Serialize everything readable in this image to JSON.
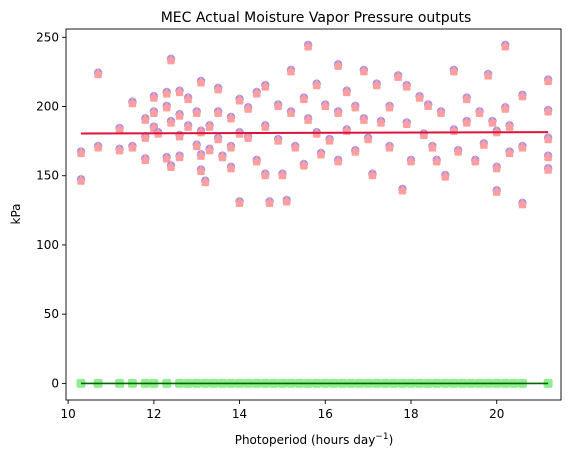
{
  "chart_data": {
    "type": "scatter",
    "title": "MEC Actual Moisture Vapor Pressure outputs",
    "xlabel_main": "Photoperiod (hours day",
    "xlabel_sup": "−1",
    "xlabel_close": ")",
    "ylabel": "kPa",
    "xlim": [
      9.95,
      21.5
    ],
    "ylim": [
      -12,
      256
    ],
    "xticks": [
      10,
      12,
      14,
      16,
      18,
      20
    ],
    "yticks": [
      0,
      50,
      100,
      150,
      200,
      250
    ],
    "grid": false,
    "colors": {
      "marker_outer": "#9b8ff2",
      "marker_inner": "#ff9e9e",
      "zero_marker": "#90ee90",
      "trend_line": "#dc143c",
      "zero_line": "#006400"
    },
    "series": [
      {
        "marker": "circle+triangle",
        "points": [
          [
            10.3,
            166
          ],
          [
            10.3,
            146
          ],
          [
            10.7,
            223
          ],
          [
            10.7,
            170
          ],
          [
            11.2,
            183
          ],
          [
            11.2,
            168
          ],
          [
            11.5,
            202
          ],
          [
            11.5,
            170
          ],
          [
            11.8,
            190
          ],
          [
            11.8,
            177
          ],
          [
            11.8,
            161
          ],
          [
            12.0,
            206
          ],
          [
            12.0,
            195
          ],
          [
            12.0,
            184
          ],
          [
            12.1,
            180
          ],
          [
            12.3,
            209
          ],
          [
            12.3,
            199
          ],
          [
            12.3,
            162
          ],
          [
            12.4,
            233
          ],
          [
            12.4,
            188
          ],
          [
            12.4,
            156
          ],
          [
            12.6,
            210
          ],
          [
            12.6,
            193
          ],
          [
            12.6,
            178
          ],
          [
            12.6,
            163
          ],
          [
            12.8,
            205
          ],
          [
            12.8,
            185
          ],
          [
            13.0,
            195
          ],
          [
            13.0,
            171
          ],
          [
            13.1,
            217
          ],
          [
            13.1,
            181
          ],
          [
            13.1,
            164
          ],
          [
            13.1,
            153
          ],
          [
            13.2,
            145
          ],
          [
            13.3,
            185
          ],
          [
            13.3,
            168
          ],
          [
            13.5,
            212
          ],
          [
            13.5,
            195
          ],
          [
            13.5,
            176
          ],
          [
            13.6,
            163
          ],
          [
            13.8,
            191
          ],
          [
            13.8,
            170
          ],
          [
            13.8,
            155
          ],
          [
            14.0,
            204
          ],
          [
            14.0,
            180
          ],
          [
            14.0,
            130
          ],
          [
            14.2,
            198
          ],
          [
            14.2,
            177
          ],
          [
            14.4,
            209
          ],
          [
            14.4,
            160
          ],
          [
            14.6,
            214
          ],
          [
            14.6,
            185
          ],
          [
            14.6,
            150
          ],
          [
            14.7,
            130
          ],
          [
            14.9,
            200
          ],
          [
            14.9,
            175
          ],
          [
            15.0,
            150
          ],
          [
            15.1,
            131
          ],
          [
            15.2,
            225
          ],
          [
            15.2,
            195
          ],
          [
            15.3,
            170
          ],
          [
            15.5,
            205
          ],
          [
            15.5,
            157
          ],
          [
            15.6,
            243
          ],
          [
            15.6,
            190
          ],
          [
            15.8,
            215
          ],
          [
            15.8,
            180
          ],
          [
            15.9,
            165
          ],
          [
            16.0,
            200
          ],
          [
            16.1,
            175
          ],
          [
            16.3,
            229
          ],
          [
            16.3,
            195
          ],
          [
            16.3,
            160
          ],
          [
            16.5,
            210
          ],
          [
            16.5,
            182
          ],
          [
            16.7,
            199
          ],
          [
            16.7,
            167
          ],
          [
            16.9,
            225
          ],
          [
            16.9,
            190
          ],
          [
            17.0,
            176
          ],
          [
            17.1,
            150
          ],
          [
            17.2,
            215
          ],
          [
            17.3,
            188
          ],
          [
            17.5,
            199
          ],
          [
            17.5,
            170
          ],
          [
            17.7,
            221
          ],
          [
            17.8,
            139
          ],
          [
            17.9,
            214
          ],
          [
            17.9,
            187
          ],
          [
            18.0,
            160
          ],
          [
            18.2,
            206
          ],
          [
            18.3,
            179
          ],
          [
            18.4,
            200
          ],
          [
            18.5,
            170
          ],
          [
            18.6,
            160
          ],
          [
            18.7,
            195
          ],
          [
            18.8,
            149
          ],
          [
            19.0,
            225
          ],
          [
            19.0,
            182
          ],
          [
            19.1,
            167
          ],
          [
            19.3,
            205
          ],
          [
            19.3,
            188
          ],
          [
            19.5,
            160
          ],
          [
            19.6,
            195
          ],
          [
            19.7,
            172
          ],
          [
            19.8,
            222
          ],
          [
            19.9,
            188
          ],
          [
            20.0,
            181
          ],
          [
            20.0,
            155
          ],
          [
            20.0,
            138
          ],
          [
            20.2,
            243
          ],
          [
            20.2,
            198
          ],
          [
            20.3,
            185
          ],
          [
            20.3,
            166
          ],
          [
            20.6,
            207
          ],
          [
            20.6,
            170
          ],
          [
            20.6,
            129
          ],
          [
            21.2,
            218
          ],
          [
            21.2,
            196
          ],
          [
            21.2,
            176
          ],
          [
            21.2,
            163
          ],
          [
            21.2,
            154
          ]
        ]
      }
    ],
    "zero_series_x": [
      10.3,
      10.7,
      11.2,
      11.5,
      11.8,
      12.0,
      12.3,
      12.6,
      12.8,
      13.0,
      13.2,
      13.4,
      13.6,
      13.8,
      14.0,
      14.2,
      14.4,
      14.6,
      14.8,
      15.0,
      15.2,
      15.4,
      15.6,
      15.8,
      16.0,
      16.2,
      16.4,
      16.6,
      16.8,
      17.0,
      17.2,
      17.4,
      17.6,
      17.8,
      18.0,
      18.2,
      18.4,
      18.6,
      18.8,
      19.0,
      19.2,
      19.4,
      19.6,
      19.8,
      20.0,
      20.2,
      20.4,
      20.6,
      21.2
    ],
    "trend_line": {
      "x": [
        10.3,
        21.2
      ],
      "y": [
        180.5,
        181.5
      ]
    },
    "zero_line": {
      "x": [
        10.3,
        21.2
      ],
      "y": [
        0,
        0
      ]
    }
  }
}
